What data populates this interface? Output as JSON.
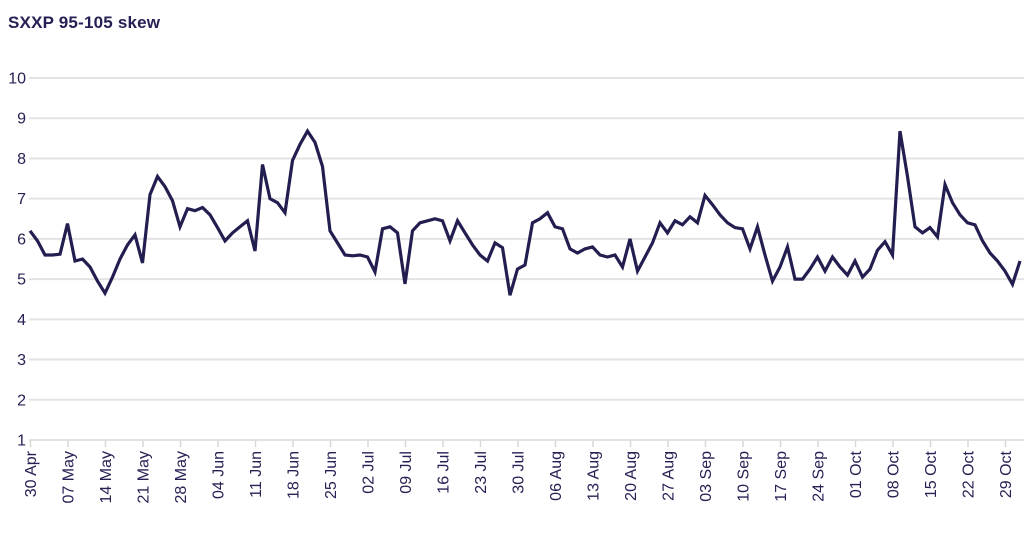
{
  "title": "SXXP 95-105 skew",
  "colors": {
    "line": "#231e50",
    "text": "#262154",
    "gridline": "#e3e3e3",
    "tick": "#d9d9d9",
    "background": "#ffffff"
  },
  "chart_data": {
    "type": "line",
    "title": "SXXP 95-105 skew",
    "xlabel": "",
    "ylabel": "",
    "ylim": [
      1,
      10
    ],
    "y_ticks": [
      1,
      2,
      3,
      4,
      5,
      6,
      7,
      8,
      9,
      10
    ],
    "grid": "horizontal",
    "legend": "none",
    "x_tick_labels": [
      "30 Apr",
      "07 May",
      "14 May",
      "21 May",
      "28 May",
      "04 Jun",
      "11 Jun",
      "18 Jun",
      "25 Jun",
      "02 Jul",
      "09 Jul",
      "16 Jul",
      "23 Jul",
      "30 Jul",
      "06 Aug",
      "13 Aug",
      "20 Aug",
      "27 Aug",
      "03 Sep",
      "10 Sep",
      "17 Sep",
      "24 Sep",
      "01 Oct",
      "08 Oct",
      "15 Oct",
      "22 Oct",
      "29 Oct"
    ],
    "x_ticks_every_n_points": 5,
    "series": [
      {
        "name": "SXXP 95-105 skew",
        "values": [
          6.2,
          5.95,
          5.6,
          5.6,
          5.62,
          6.38,
          5.45,
          5.5,
          5.3,
          4.95,
          4.65,
          5.05,
          5.5,
          5.85,
          6.1,
          5.4,
          7.1,
          7.55,
          7.3,
          6.95,
          6.3,
          6.75,
          6.7,
          6.78,
          6.6,
          6.28,
          5.95,
          6.15,
          6.3,
          6.45,
          5.7,
          7.85,
          7.0,
          6.9,
          6.65,
          7.95,
          8.35,
          8.68,
          8.4,
          7.8,
          6.2,
          5.9,
          5.6,
          5.58,
          5.6,
          5.55,
          5.18,
          6.25,
          6.3,
          6.15,
          4.88,
          6.2,
          6.4,
          6.45,
          6.5,
          6.45,
          5.95,
          6.45,
          6.15,
          5.85,
          5.6,
          5.45,
          5.9,
          5.78,
          4.6,
          5.25,
          5.35,
          6.4,
          6.5,
          6.65,
          6.3,
          6.25,
          5.75,
          5.65,
          5.75,
          5.8,
          5.6,
          5.55,
          5.6,
          5.3,
          6.0,
          5.2,
          5.55,
          5.9,
          6.4,
          6.15,
          6.45,
          6.35,
          6.55,
          6.4,
          7.08,
          6.85,
          6.6,
          6.4,
          6.28,
          6.25,
          5.75,
          6.3,
          5.6,
          4.95,
          5.3,
          5.8,
          5.0,
          5.0,
          5.25,
          5.55,
          5.2,
          5.55,
          5.3,
          5.1,
          5.45,
          5.05,
          5.25,
          5.72,
          5.93,
          5.6,
          8.68,
          7.55,
          6.3,
          6.15,
          6.28,
          6.05,
          7.35,
          6.9,
          6.6,
          6.4,
          6.35,
          5.95,
          5.65,
          5.45,
          5.2,
          4.87,
          5.45
        ]
      }
    ]
  }
}
